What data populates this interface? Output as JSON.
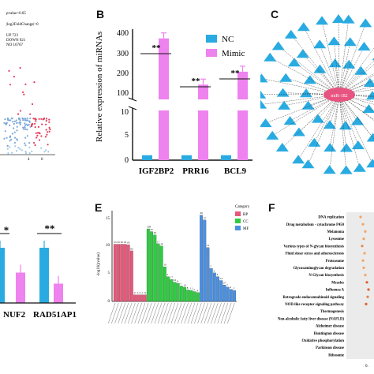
{
  "panels": {
    "A": {
      "legend": [
        "pvalue<0.05",
        "|log2FoldChange|>0",
        "UP 723",
        "DOWN 921",
        "NO 16767"
      ],
      "xticks": [
        "4",
        "6"
      ]
    },
    "B": {
      "label": "B",
      "ylabel": "Relative expression of miRNAs",
      "legend": [
        "NC",
        "Mimic"
      ],
      "colors": {
        "NC": "#29abe2",
        "Mimic": "#ee82ee"
      },
      "yticks_upper": [
        "400",
        "300",
        "200",
        "100"
      ],
      "yticks_lower": [
        "10",
        "5",
        "0"
      ],
      "significance": [
        "**",
        "**",
        "**"
      ]
    },
    "C": {
      "label": "C",
      "center": "miR-182"
    },
    "D": {
      "significance": [
        "*",
        "**"
      ],
      "categories": [
        "NUF2",
        "RAD51AP1"
      ]
    },
    "E": {
      "label": "E",
      "ylabel": "-log10(pvalue)",
      "legend_title": "Category",
      "legend": [
        "BP",
        "CC",
        "MF"
      ],
      "colors": {
        "BP": "#e8577a",
        "CC": "#2ecc40",
        "MF": "#4a90e2"
      },
      "yticks": [
        "15",
        "10",
        "5",
        "0"
      ]
    },
    "F": {
      "label": "F",
      "pathways": [
        "DNA replication",
        "Drug metabolism - cytochrome P450",
        "Melanoma",
        "Lysosome",
        "Various types of N-glycan biosynthesis",
        "Fluid shear stress and atherosclerosis",
        "Proteasome",
        "Glycosaminoglycan degradation",
        "N-Glycan biosynthesis",
        "Measles",
        "Influenza A",
        "Retrograde endocannabinoid signaling",
        "NOD-like receptor signaling pathway",
        "Thermogenesis",
        "Non-alcoholic fatty liver disease (NAFLD)",
        "Alzheimer disease",
        "Huntington disease",
        "Oxidative phosphorylation",
        "Parkinson disease",
        "Ribosome"
      ],
      "xtick": "0."
    }
  },
  "chart_data": [
    {
      "type": "bar",
      "panel": "B",
      "categories": [
        "IGF2BP2",
        "PRR16",
        "BCL9"
      ],
      "series": [
        {
          "name": "NC",
          "values": [
            1,
            1,
            1
          ]
        },
        {
          "name": "Mimic",
          "values": [
            350,
            100,
            170
          ]
        }
      ],
      "ylabel": "Relative expression of miRNAs",
      "ylim_upper": [
        20,
        400
      ],
      "ylim_lower": [
        0,
        10
      ]
    },
    {
      "type": "bar",
      "panel": "D",
      "categories": [
        "NUF2",
        "RAD51AP1"
      ],
      "series": [
        {
          "values": [
            1.0,
            1.0
          ]
        },
        {
          "values": [
            0.55,
            0.35
          ]
        }
      ]
    },
    {
      "type": "bar",
      "panel": "E",
      "ylabel": "-log10(pvalue)",
      "ylim": [
        0,
        16
      ],
      "series": [
        {
          "name": "BP",
          "values": [
            10.4,
            10.4,
            10.4,
            10.4,
            10.3,
            9.2,
            1.2,
            1.2,
            1.2,
            1.2
          ]
        },
        {
          "name": "CC",
          "values": [
            13.2,
            12.7,
            12.1,
            10.5,
            10.1,
            6.3,
            4.5,
            4.0,
            3.5,
            3.3,
            2.8,
            2.6,
            2.1,
            2.0,
            1.8,
            1.6
          ]
        },
        {
          "name": "MF",
          "values": [
            15.7,
            14.8,
            9.8,
            6.0,
            5.2,
            4.5,
            3.8,
            3.0,
            2.6,
            2.2,
            2.0
          ]
        }
      ],
      "data_labels": {
        "BP": [
          "65",
          "65",
          "65",
          "65",
          "65",
          "83",
          "11",
          "11",
          "11",
          "11"
        ],
        "CC": [
          "209",
          "67",
          "20",
          "17",
          "14",
          "10",
          "5",
          "17",
          "10",
          "9",
          "7",
          "13",
          "8",
          "11",
          "5",
          "4"
        ],
        "MF": [
          "66",
          "37",
          "12",
          "5",
          "4",
          "4",
          "14",
          "27",
          "7",
          "4",
          "5"
        ]
      }
    }
  ]
}
